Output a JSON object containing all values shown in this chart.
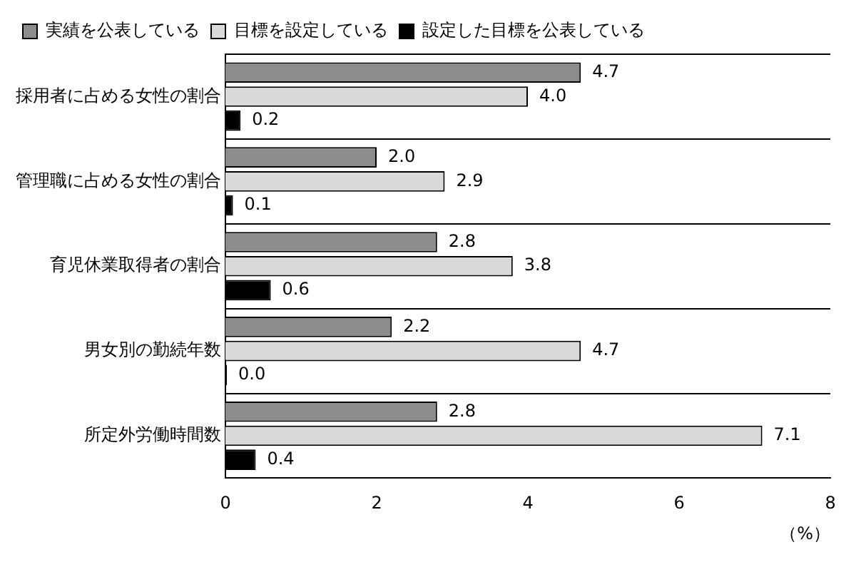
{
  "chart_data": {
    "type": "bar",
    "orientation": "horizontal",
    "categories": [
      "採用者に占める女性の割合",
      "管理職に占める女性の割合",
      "育児休業取得者の割合",
      "男女別の勤続年数",
      "所定外労働時間数"
    ],
    "series": [
      {
        "name": "実績を公表している",
        "color": "#8c8c8c",
        "values": [
          4.7,
          2.0,
          2.8,
          2.2,
          2.8
        ],
        "value_labels": [
          "4.7",
          "2.0",
          "2.8",
          "2.2",
          "2.8"
        ]
      },
      {
        "name": "目標を設定している",
        "color": "#d9d9d9",
        "values": [
          4.0,
          2.9,
          3.8,
          4.7,
          7.1
        ],
        "value_labels": [
          "4.0",
          "2.9",
          "3.8",
          "4.7",
          "7.1"
        ]
      },
      {
        "name": "設定した目標を公表している",
        "color": "#000000",
        "values": [
          0.2,
          0.1,
          0.6,
          0.0,
          0.4
        ],
        "value_labels": [
          "0.2",
          "0.1",
          "0.6",
          "0.0",
          "0.4"
        ]
      }
    ],
    "xlim": [
      0,
      8
    ],
    "xticks": [
      0,
      2,
      4,
      6,
      8
    ],
    "xlabel": "（%）",
    "grid": "y",
    "legend": "top"
  }
}
